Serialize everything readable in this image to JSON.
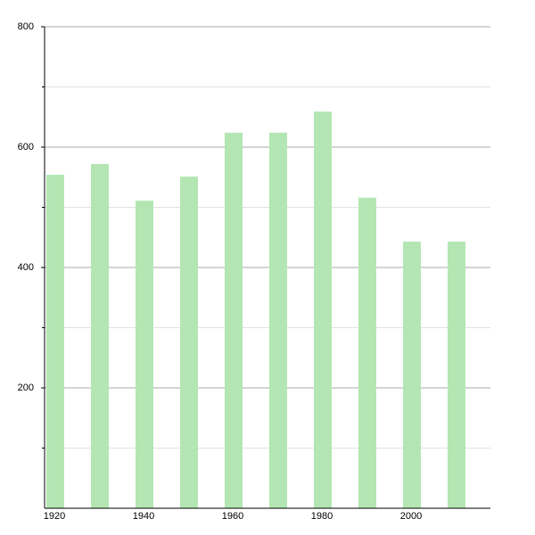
{
  "chart_data": {
    "type": "bar",
    "categories": [
      "1920",
      null,
      "1940",
      null,
      "1960",
      null,
      "1980",
      null,
      "2000",
      null
    ],
    "values": [
      554,
      572,
      511,
      551,
      624,
      624,
      659,
      516,
      443,
      443
    ],
    "color": "#b3e6b3",
    "ylim": [
      0,
      800
    ],
    "yticks": [
      200,
      400,
      600,
      800
    ],
    "minor_yticks": [
      100,
      300,
      500,
      700
    ],
    "grid": true
  }
}
